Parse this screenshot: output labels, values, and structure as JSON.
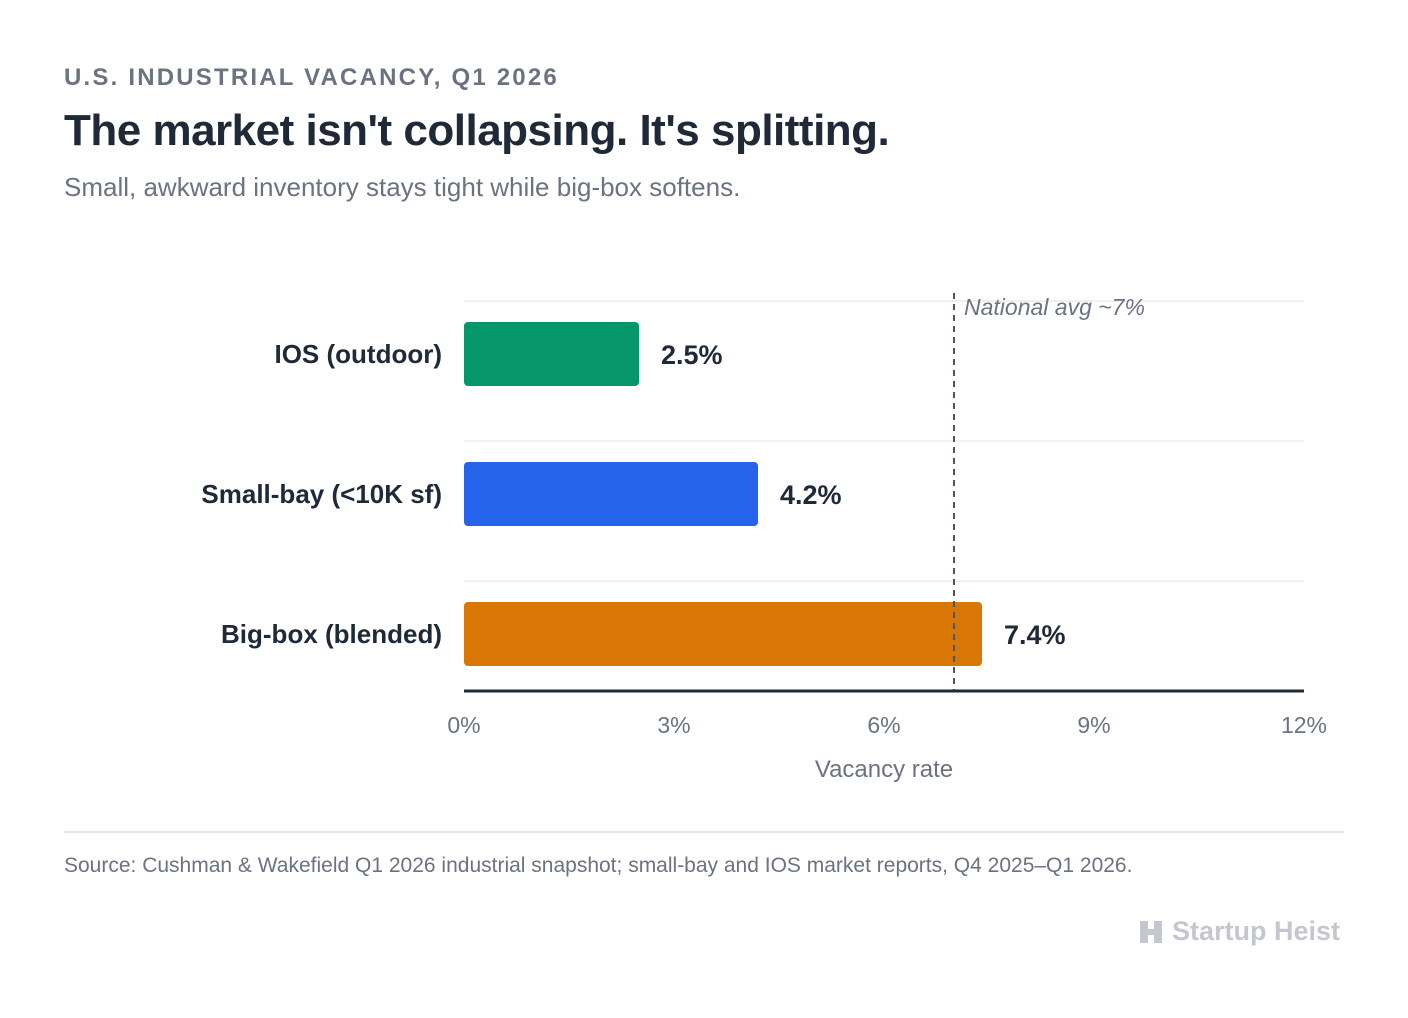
{
  "header": {
    "eyebrow": "U.S. INDUSTRIAL VACANCY, Q1 2026",
    "title": "The market isn't collapsing. It's splitting.",
    "subtitle": "Small, awkward inventory stays tight while big-box softens."
  },
  "chart_data": {
    "type": "bar",
    "orientation": "horizontal",
    "categories": [
      "IOS (outdoor)",
      "Small-bay (<10K sf)",
      "Big-box (blended)"
    ],
    "values": [
      2.5,
      4.2,
      7.4
    ],
    "data_labels": [
      "2.5%",
      "4.2%",
      "7.4%"
    ],
    "colors": [
      "#059669",
      "#2563eb",
      "#d97706"
    ],
    "xlabel": "Vacancy rate",
    "xlim": [
      0,
      12
    ],
    "xticks": [
      0,
      3,
      6,
      9,
      12
    ],
    "xtick_labels": [
      "0%",
      "3%",
      "6%",
      "9%",
      "12%"
    ],
    "reference_line": {
      "value": 7,
      "label": "National avg ~7%"
    },
    "grid": true
  },
  "footer": {
    "source": "Source: Cushman & Wakefield Q1 2026 industrial snapshot; small-bay and IOS market reports, Q4 2025–Q1 2026.",
    "brand": "Startup Heist",
    "brand_icon": "building-icon"
  }
}
